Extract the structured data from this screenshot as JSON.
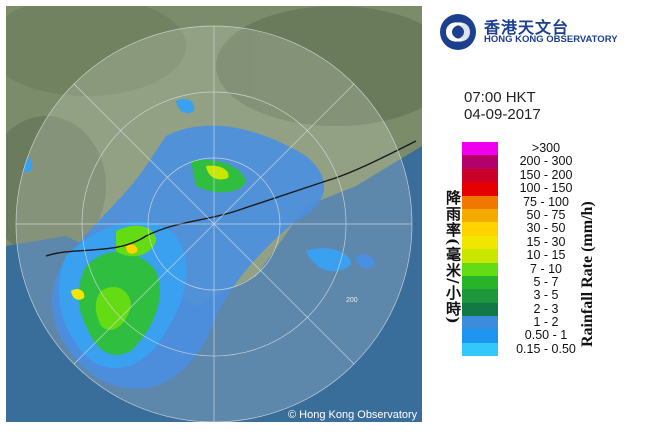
{
  "map": {
    "copyright": "© Hong Kong Observatory",
    "range_label": "200"
  },
  "logo": {
    "name_zh": "香港天文台",
    "name_en": "HONG KONG OBSERVATORY"
  },
  "timestamp": {
    "time": "07:00 HKT",
    "date": "04-09-2017"
  },
  "legend": {
    "title_zh": "降雨率(毫米/小時)",
    "title_en": "Rainfall Rate (mm/h)",
    "items": [
      {
        "label": ">300",
        "color": "#ee00ee"
      },
      {
        "label": "200 - 300",
        "color": "#b3006b"
      },
      {
        "label": "150 - 200",
        "color": "#c8002a"
      },
      {
        "label": "100 - 150",
        "color": "#e60000"
      },
      {
        "label": "75 - 100",
        "color": "#f07800"
      },
      {
        "label": "50 - 75",
        "color": "#f5aa00"
      },
      {
        "label": "30 - 50",
        "color": "#ffd200"
      },
      {
        "label": "15 - 30",
        "color": "#f0e600"
      },
      {
        "label": "10 - 15",
        "color": "#c8e600"
      },
      {
        "label": "7 - 10",
        "color": "#64dc14"
      },
      {
        "label": "5 - 7",
        "color": "#28b428"
      },
      {
        "label": "3 - 5",
        "color": "#1e963c"
      },
      {
        "label": "2 - 3",
        "color": "#147846"
      },
      {
        "label": "1 - 2",
        "color": "#3c8cdc"
      },
      {
        "label": "0.50 - 1",
        "color": "#1e96f0"
      },
      {
        "label": "0.15 - 0.50",
        "color": "#32c8fa"
      }
    ]
  }
}
